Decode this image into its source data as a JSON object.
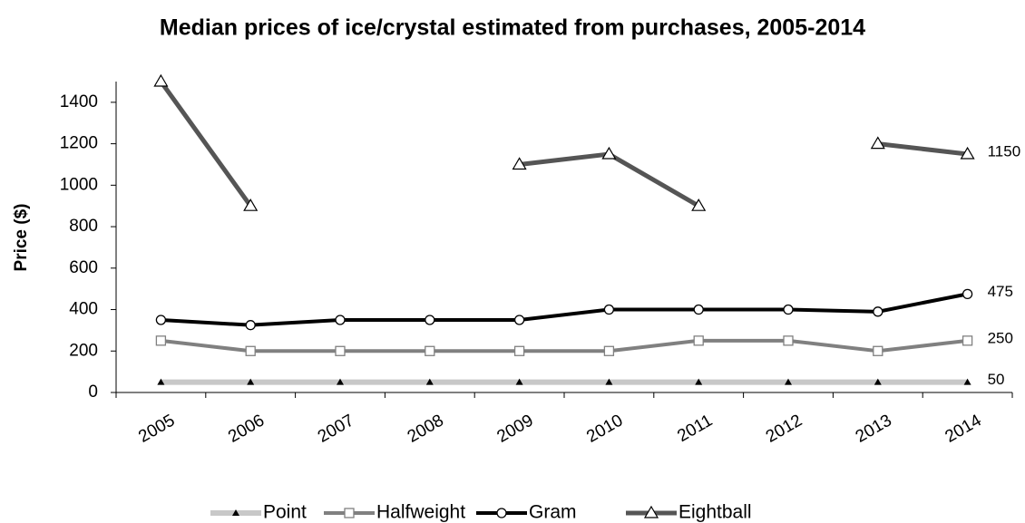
{
  "chart_data": {
    "type": "line",
    "title": "Median prices of ice/crystal estimated from purchases, 2005-2014",
    "y_label": "Price ($)",
    "categories": [
      "2005",
      "2006",
      "2007",
      "2008",
      "2009",
      "2010",
      "2011",
      "2012",
      "2013",
      "2014"
    ],
    "series": [
      {
        "name": "Point",
        "color": "#c8c8c8",
        "marker": "filled-triangle",
        "values": [
          50,
          50,
          50,
          50,
          50,
          50,
          50,
          50,
          50,
          50
        ]
      },
      {
        "name": "Halfweight",
        "color": "#808080",
        "marker": "square",
        "values": [
          250,
          200,
          200,
          200,
          200,
          200,
          250,
          250,
          200,
          250
        ]
      },
      {
        "name": "Gram",
        "color": "#000000",
        "marker": "circle",
        "values": [
          350,
          325,
          350,
          350,
          350,
          400,
          400,
          400,
          390,
          475
        ]
      },
      {
        "name": "Eightball",
        "color": "#555555",
        "marker": "triangle",
        "values": [
          1500,
          900,
          null,
          null,
          1100,
          1150,
          900,
          null,
          1200,
          1150
        ]
      }
    ],
    "ylim": [
      0,
      1500
    ],
    "yticks": [
      0,
      200,
      400,
      600,
      800,
      1000,
      1200,
      1400
    ],
    "grid": false,
    "legend": "bottom"
  }
}
